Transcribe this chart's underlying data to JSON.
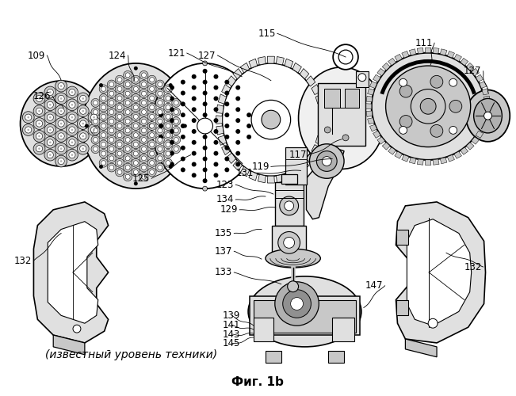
{
  "title": "Фиг. 1b",
  "subtitle": "(известный уровень техники)",
  "bg": "#ffffff",
  "fw": 6.51,
  "fh": 5.0,
  "dpi": 100,
  "lc": "black",
  "lw_main": 1.2,
  "lw_thin": 0.6,
  "lw_med": 0.9,
  "gray1": "#f0f0f0",
  "gray2": "#e0e0e0",
  "gray3": "#c8c8c8",
  "gray4": "#b0b0b0",
  "gray5": "#909090",
  "label_fs": 8.5,
  "title_fs": 11,
  "sub_fs": 10
}
